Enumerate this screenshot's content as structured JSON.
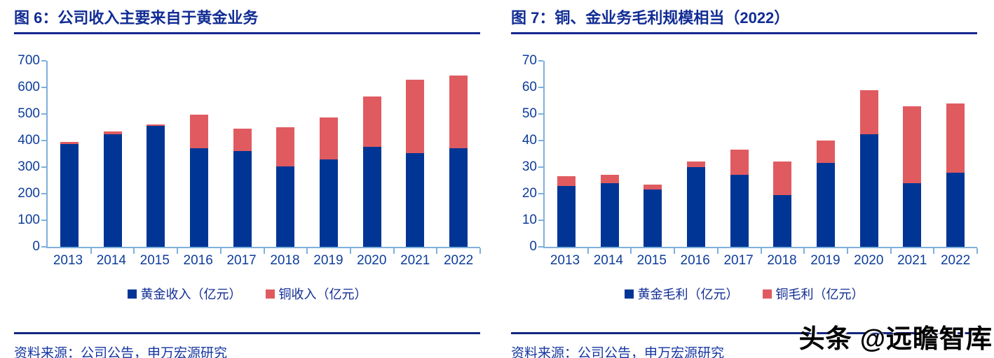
{
  "page": {
    "source_label": "资料来源：公司公告，申万宏源研究",
    "watermark": "头条 @远瞻智库"
  },
  "colors": {
    "gold_series": "#003595",
    "copper_series": "#E05B60",
    "title_text": "#112C94",
    "axis_line": "#7EB0DC",
    "tick_text": "#0D3D9B"
  },
  "chart_data": [
    {
      "type": "bar",
      "stacked": true,
      "title": "图 6：公司收入主要来自于黄金业务",
      "categories": [
        "2013",
        "2014",
        "2015",
        "2016",
        "2017",
        "2018",
        "2019",
        "2020",
        "2021",
        "2022"
      ],
      "series": [
        {
          "name": "黄金收入（亿元）",
          "color": "#003595",
          "values": [
            386,
            424,
            456,
            370,
            360,
            302,
            328,
            376,
            352,
            371
          ]
        },
        {
          "name": "铜收入（亿元）",
          "color": "#E05B60",
          "values": [
            9,
            9,
            4,
            128,
            84,
            147,
            160,
            190,
            276,
            273
          ]
        }
      ],
      "xlabel": "",
      "ylabel": "",
      "ylim": [
        0,
        700
      ],
      "yticks": [
        0,
        100,
        200,
        300,
        400,
        500,
        600,
        700
      ],
      "grid": false,
      "legend_position": "bottom"
    },
    {
      "type": "bar",
      "stacked": true,
      "title": "图 7：铜、金业务毛利规模相当（2022）",
      "categories": [
        "2013",
        "2014",
        "2015",
        "2016",
        "2017",
        "2018",
        "2019",
        "2020",
        "2021",
        "2022"
      ],
      "series": [
        {
          "name": "黄金毛利（亿元）",
          "color": "#003595",
          "values": [
            23,
            24,
            21.5,
            30,
            27,
            19.5,
            31.5,
            42.5,
            24,
            28
          ]
        },
        {
          "name": "铜毛利（亿元）",
          "color": "#E05B60",
          "values": [
            3.5,
            3,
            2,
            2,
            9.5,
            12.5,
            8.5,
            16.5,
            29,
            26
          ]
        }
      ],
      "xlabel": "",
      "ylabel": "",
      "ylim": [
        0,
        70
      ],
      "yticks": [
        0,
        10,
        20,
        30,
        40,
        50,
        60,
        70
      ],
      "grid": false,
      "legend_position": "bottom"
    }
  ]
}
